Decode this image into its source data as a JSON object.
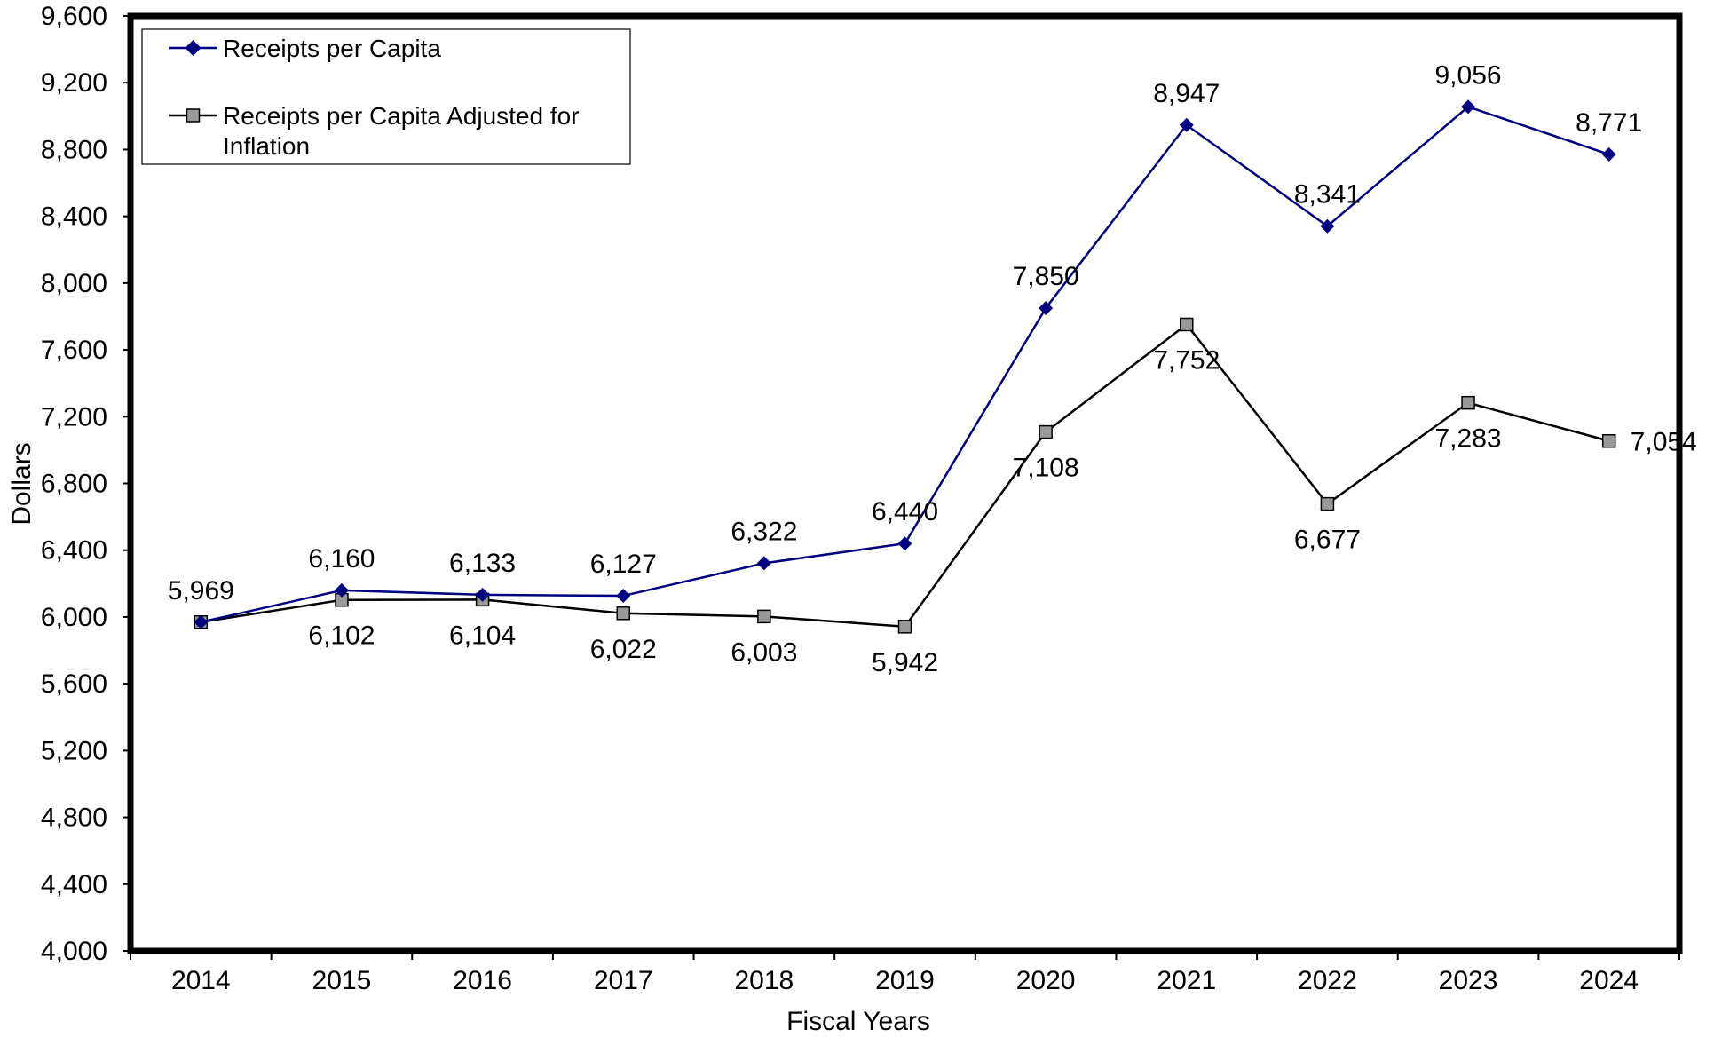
{
  "chart_data": {
    "type": "line",
    "xlabel": "Fiscal Years",
    "ylabel": "Dollars",
    "ylim": [
      4000,
      9600
    ],
    "yticks": [
      4000,
      4400,
      4800,
      5200,
      5600,
      6000,
      6400,
      6800,
      7200,
      7600,
      8000,
      8400,
      8800,
      9200,
      9600
    ],
    "ytick_labels": [
      "4,000",
      "4,400",
      "4,800",
      "5,200",
      "5,600",
      "6,000",
      "6,400",
      "6,800",
      "7,200",
      "7,600",
      "8,000",
      "8,400",
      "8,800",
      "9,200",
      "9,600"
    ],
    "categories": [
      "2014",
      "2015",
      "2016",
      "2017",
      "2018",
      "2019",
      "2020",
      "2021",
      "2022",
      "2023",
      "2024"
    ],
    "grid": false,
    "legend_position": "top-left",
    "series": [
      {
        "name": "Receipts per Capita",
        "color": "#000080",
        "marker": "diamond",
        "values": [
          5969,
          6160,
          6133,
          6127,
          6322,
          6440,
          7850,
          8947,
          8341,
          9056,
          8771
        ],
        "labels": [
          "5,969",
          "6,160",
          "6,133",
          "6,127",
          "6,322",
          "6,440",
          "7,850",
          "8,947",
          "8,341",
          "9,056",
          "8,771"
        ]
      },
      {
        "name": "Receipts per Capita Adjusted for Inflation",
        "name_lines": [
          "Receipts per Capita Adjusted for",
          "Inflation"
        ],
        "color": "#000000",
        "marker_fill": "#999999",
        "marker": "square",
        "values": [
          5969,
          6102,
          6104,
          6022,
          6003,
          5942,
          7108,
          7752,
          6677,
          7283,
          7054
        ],
        "labels": [
          "",
          "6,102",
          "6,104",
          "6,022",
          "6,003",
          "5,942",
          "7,108",
          "7,752",
          "6,677",
          "7,283",
          "7,054"
        ]
      }
    ]
  }
}
